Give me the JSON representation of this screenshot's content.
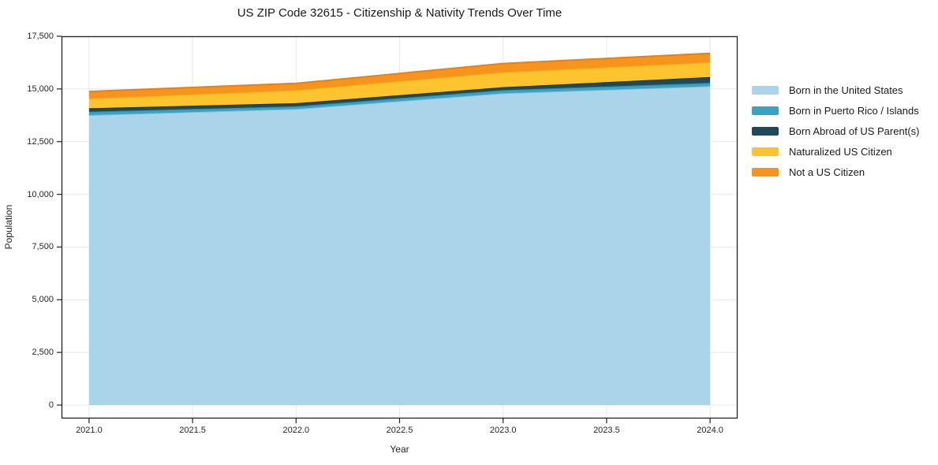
{
  "title": "US ZIP Code 32615 - Citizenship & Nativity Trends Over Time",
  "chart_data": {
    "type": "area",
    "stacked": true,
    "title": "US ZIP Code 32615 - Citizenship & Nativity Trends Over Time",
    "xlabel": "Year",
    "ylabel": "Population",
    "x": [
      2021,
      2022,
      2023,
      2024
    ],
    "series": [
      {
        "name": "Born in the United States",
        "values": [
          13760,
          14050,
          14795,
          15130
        ],
        "fill": "#a9d4e9",
        "line": "#86bedd"
      },
      {
        "name": "Born in Puerto Rico / Islands",
        "values": [
          160,
          125,
          150,
          160
        ],
        "fill": "#3aa3bf",
        "line": "#2a8fa9"
      },
      {
        "name": "Born Abroad of US Parent(s)",
        "values": [
          165,
          150,
          140,
          275
        ],
        "fill": "#1f4a5c",
        "line": "#16394a"
      },
      {
        "name": "Naturalized US Citizen",
        "values": [
          460,
          620,
          710,
          700
        ],
        "fill": "#fdc42f",
        "line": "#f3ae10"
      },
      {
        "name": "Not a US Citizen",
        "values": [
          335,
          320,
          410,
          425
        ],
        "fill": "#f7941e",
        "line": "#e8820c"
      }
    ],
    "stack_totals": [
      14880,
      15265,
      16205,
      16690
    ],
    "xticks": {
      "values": [
        2021,
        2021.5,
        2022,
        2022.5,
        2023,
        2023.5,
        2024
      ],
      "labels": [
        "2021.0",
        "2021.5",
        "2022.0",
        "2022.5",
        "2023.0",
        "2023.5",
        "2024.0"
      ]
    },
    "yticks": {
      "values": [
        0,
        2500,
        5000,
        7500,
        10000,
        12500,
        15000,
        17500
      ],
      "labels": [
        "0",
        "2,500",
        "5,000",
        "7,500",
        "10,000",
        "12,500",
        "15,000",
        "17,500"
      ]
    },
    "xlim": [
      2020.867,
      2024.133
    ],
    "ylim": [
      -636,
      17500
    ],
    "grid": true,
    "grid_color": "#e8e8e8",
    "frame_color": "#222222",
    "legend_position": "right-outside"
  }
}
